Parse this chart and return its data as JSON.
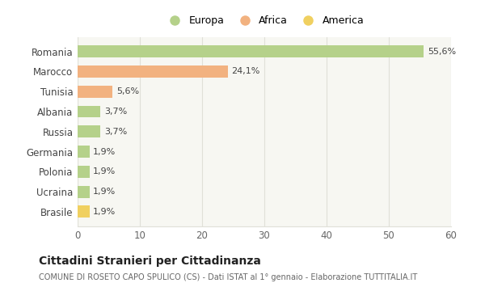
{
  "categories": [
    "Romania",
    "Marocco",
    "Tunisia",
    "Albania",
    "Russia",
    "Germania",
    "Polonia",
    "Ucraina",
    "Brasile"
  ],
  "values": [
    55.6,
    24.1,
    5.6,
    3.7,
    3.7,
    1.9,
    1.9,
    1.9,
    1.9
  ],
  "labels": [
    "55,6%",
    "24,1%",
    "5,6%",
    "3,7%",
    "3,7%",
    "1,9%",
    "1,9%",
    "1,9%",
    "1,9%"
  ],
  "colors": [
    "#b5d18a",
    "#f2b280",
    "#f2b280",
    "#b5d18a",
    "#b5d18a",
    "#b5d18a",
    "#b5d18a",
    "#b5d18a",
    "#f0d060"
  ],
  "legend_labels": [
    "Europa",
    "Africa",
    "America"
  ],
  "legend_colors": [
    "#b5d18a",
    "#f2b280",
    "#f0d060"
  ],
  "title": "Cittadini Stranieri per Cittadinanza",
  "subtitle": "COMUNE DI ROSETO CAPO SPULICO (CS) - Dati ISTAT al 1° gennaio - Elaborazione TUTTITALIA.IT",
  "xlim": [
    0,
    60
  ],
  "xticks": [
    0,
    10,
    20,
    30,
    40,
    50,
    60
  ],
  "background_color": "#ffffff",
  "axes_bg_color": "#f7f7f2",
  "grid_color": "#e0e0d8"
}
